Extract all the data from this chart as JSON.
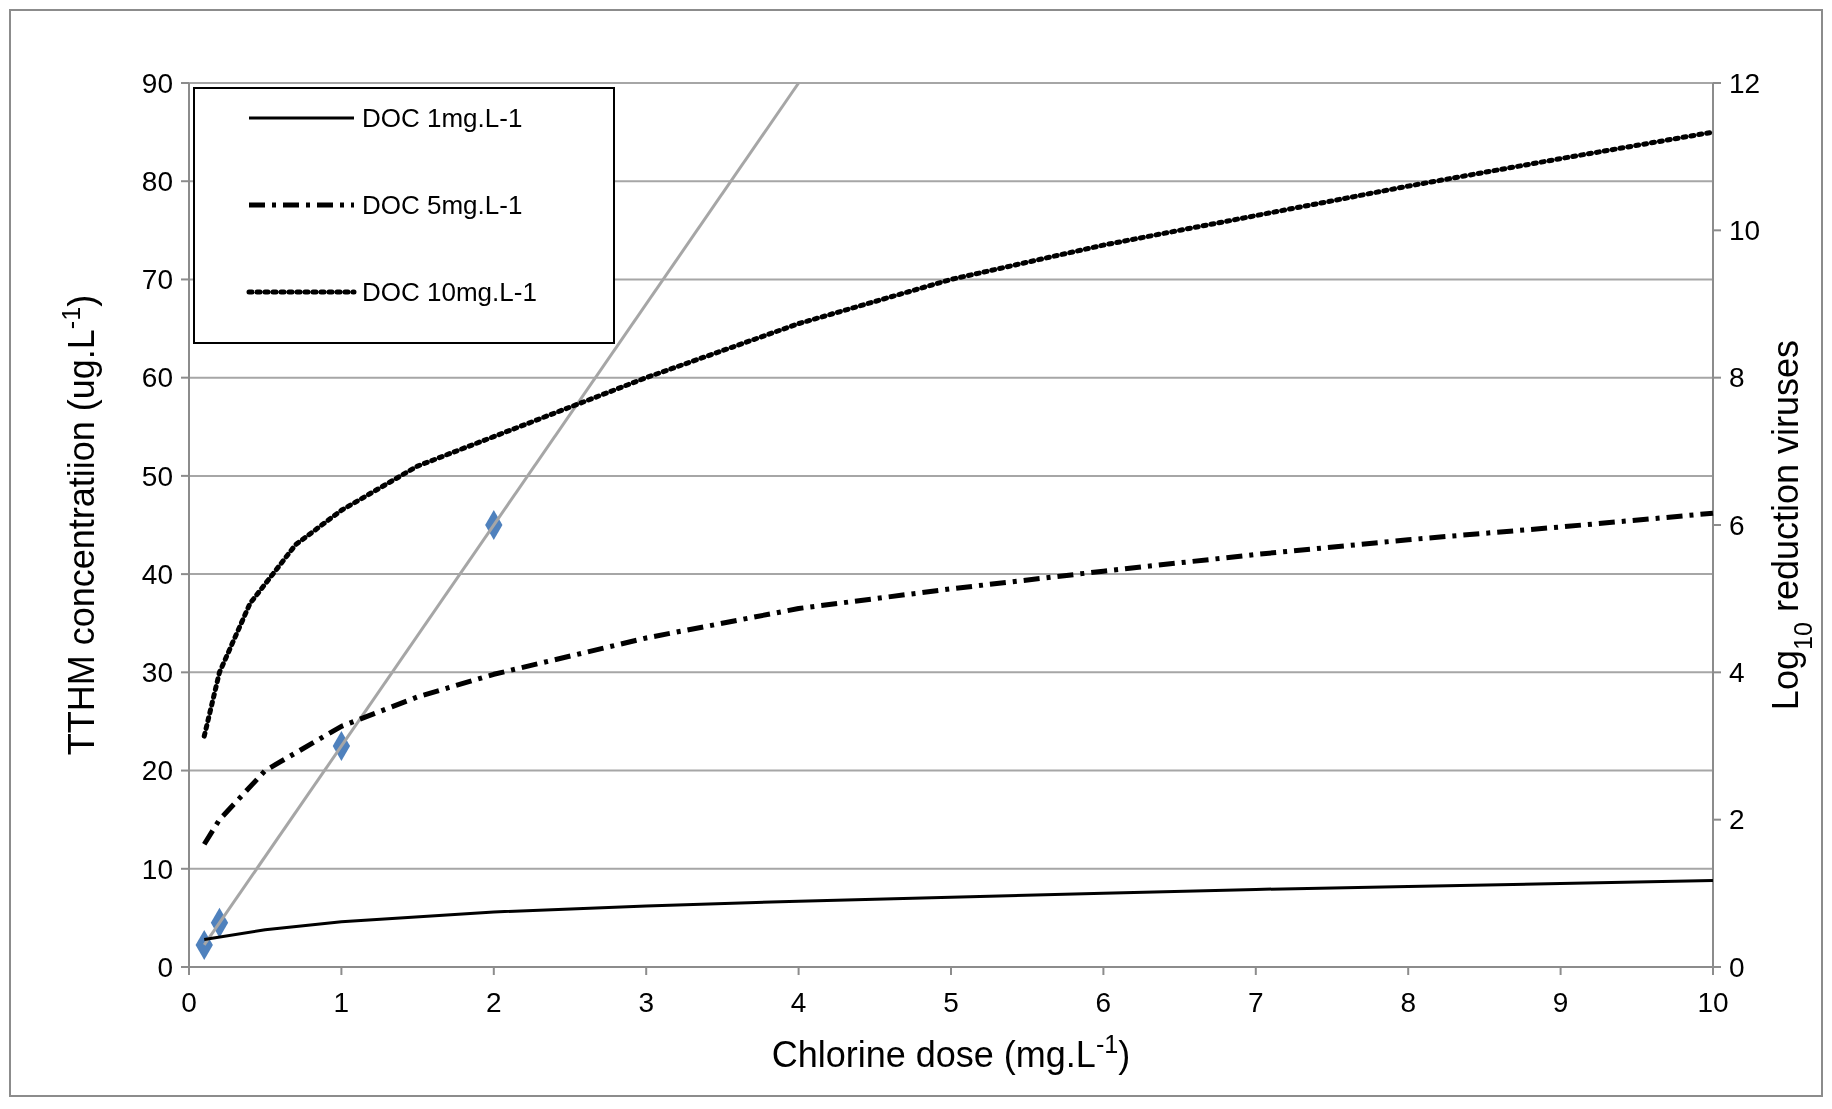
{
  "chart_data": {
    "type": "line",
    "xlabel": "Chlorine dose (mg.L$^{-1}$)",
    "ylabel": "TTHM concentratiion (ug.L$^{-1}$)",
    "y2label": "Log$_{10}$ reduction viruses",
    "xlim": [
      0,
      10
    ],
    "xticks": [
      0,
      1,
      2,
      3,
      4,
      5,
      6,
      7,
      8,
      9,
      10
    ],
    "ylim": [
      0,
      90
    ],
    "yticks": [
      0,
      10,
      20,
      30,
      40,
      50,
      60,
      70,
      80,
      90
    ],
    "y2lim": [
      0,
      12
    ],
    "y2ticks": [
      0,
      2,
      4,
      6,
      8,
      10,
      12
    ],
    "grid": "y",
    "legend": "top left",
    "marker": "none",
    "series": [
      {
        "name": "DOC 1mg.L-1",
        "color": "#000000",
        "line_style": "solid",
        "x": [
          0.1,
          0.5,
          1,
          2,
          3,
          4,
          5,
          6,
          7,
          8,
          9,
          10
        ],
        "values": [
          2.8,
          3.8,
          4.6,
          5.6,
          6.2,
          6.7,
          7.1,
          7.5,
          7.9,
          8.2,
          8.5,
          8.8
        ]
      },
      {
        "name": "DOC 5mg.L-1",
        "color": "#000000",
        "line_style": "dashed",
        "x": [
          0.1,
          0.2,
          0.5,
          1,
          1.5,
          2,
          3,
          4,
          5,
          6,
          7,
          8,
          9,
          10
        ],
        "values": [
          12.5,
          15,
          20,
          24.5,
          27.5,
          29.8,
          33.5,
          36.5,
          38.5,
          40.3,
          42,
          43.5,
          44.8,
          46.2
        ]
      },
      {
        "name": "DOC 10mg.L-1",
        "color": "#000000",
        "line_style": "dotted",
        "x": [
          0.1,
          0.2,
          0.4,
          0.7,
          1,
          1.5,
          2,
          3,
          4,
          5,
          6,
          7,
          8,
          9,
          10
        ],
        "values": [
          23.5,
          30,
          37,
          43,
          46.5,
          51,
          54,
          60,
          65.5,
          70,
          73.5,
          76.5,
          79.5,
          82.3,
          85
        ]
      },
      {
        "type": "line",
        "axis": "y2",
        "color": "#a6a6a6",
        "line_style": "solid",
        "x": [
          0.1,
          4
        ],
        "values": [
          0.3,
          12
        ]
      },
      {
        "type": "scatter",
        "axis": "y2",
        "color": "#4f81bd",
        "marker": "diamond",
        "x": [
          0.1,
          0.2,
          1,
          2
        ],
        "values": [
          0.3,
          0.6,
          3,
          6
        ]
      }
    ]
  }
}
